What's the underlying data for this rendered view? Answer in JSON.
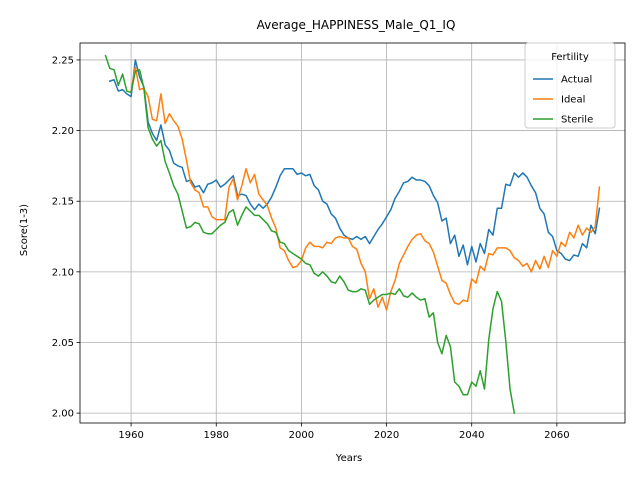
{
  "chart_data": {
    "type": "line",
    "title": "Average_HAPPINESS_Male_Q1_IQ",
    "xlabel": "Years",
    "ylabel": "Score(1-3)",
    "xlim": [
      1948,
      2076
    ],
    "ylim": [
      1.993,
      2.262
    ],
    "xticks": [
      1960,
      1980,
      2000,
      2020,
      2040,
      2060
    ],
    "xtick_labels": [
      "1960",
      "1980",
      "2000",
      "2020",
      "2040",
      "2060"
    ],
    "yticks": [
      2.0,
      2.05,
      2.1,
      2.15,
      2.2,
      2.25
    ],
    "ytick_labels": [
      "2.00",
      "2.05",
      "2.10",
      "2.15",
      "2.20",
      "2.25"
    ],
    "grid": true,
    "legend": {
      "title": "Fertility",
      "position": "top-right"
    },
    "series": [
      {
        "name": "Actual",
        "color": "#1f77b4",
        "x": [
          1955,
          1956,
          1957,
          1958,
          1959,
          1960,
          1961,
          1962,
          1963,
          1964,
          1965,
          1966,
          1967,
          1968,
          1969,
          1970,
          1971,
          1972,
          1973,
          1974,
          1975,
          1976,
          1977,
          1978,
          1979,
          1980,
          1981,
          1982,
          1983,
          1984,
          1985,
          1986,
          1987,
          1988,
          1989,
          1990,
          1991,
          1992,
          1993,
          1994,
          1995,
          1996,
          1997,
          1998,
          1999,
          2000,
          2001,
          2002,
          2003,
          2004,
          2005,
          2006,
          2007,
          2008,
          2009,
          2010,
          2011,
          2012,
          2013,
          2014,
          2015,
          2016,
          2017,
          2018,
          2019,
          2020,
          2021,
          2022,
          2023,
          2024,
          2025,
          2026,
          2027,
          2028,
          2029,
          2030,
          2031,
          2032,
          2033,
          2034,
          2035,
          2036,
          2037,
          2038,
          2039,
          2040,
          2041,
          2042,
          2043,
          2044,
          2045,
          2046,
          2047,
          2048,
          2049,
          2050,
          2051,
          2052,
          2053,
          2054,
          2055,
          2056,
          2057,
          2058,
          2059,
          2060,
          2061,
          2062,
          2063,
          2064,
          2065,
          2066,
          2067,
          2068,
          2069,
          2070
        ],
        "values": [
          2.235,
          2.236,
          2.228,
          2.229,
          2.226,
          2.224,
          2.25,
          2.238,
          2.231,
          2.206,
          2.198,
          2.193,
          2.204,
          2.19,
          2.186,
          2.177,
          2.175,
          2.174,
          2.164,
          2.165,
          2.16,
          2.161,
          2.156,
          2.162,
          2.163,
          2.165,
          2.16,
          2.162,
          2.165,
          2.168,
          2.154,
          2.155,
          2.154,
          2.148,
          2.144,
          2.148,
          2.145,
          2.148,
          2.153,
          2.16,
          2.168,
          2.173,
          2.173,
          2.173,
          2.169,
          2.17,
          2.168,
          2.169,
          2.161,
          2.158,
          2.15,
          2.148,
          2.141,
          2.138,
          2.131,
          2.126,
          2.124,
          2.123,
          2.125,
          2.123,
          2.125,
          2.12,
          2.125,
          2.13,
          2.134,
          2.139,
          2.144,
          2.152,
          2.157,
          2.163,
          2.164,
          2.167,
          2.165,
          2.165,
          2.164,
          2.161,
          2.154,
          2.149,
          2.136,
          2.138,
          2.12,
          2.126,
          2.111,
          2.119,
          2.105,
          2.118,
          2.107,
          2.12,
          2.113,
          2.13,
          2.126,
          2.145,
          2.145,
          2.162,
          2.161,
          2.17,
          2.167,
          2.17,
          2.167,
          2.161,
          2.156,
          2.145,
          2.141,
          2.128,
          2.125,
          2.115,
          2.113,
          2.109,
          2.108,
          2.112,
          2.111,
          2.12,
          2.117,
          2.133,
          2.127,
          2.145
        ]
      },
      {
        "name": "Ideal",
        "color": "#ff7f0e",
        "x": [
          1960,
          1961,
          1962,
          1963,
          1964,
          1965,
          1966,
          1967,
          1968,
          1969,
          1970,
          1971,
          1972,
          1973,
          1974,
          1975,
          1976,
          1977,
          1978,
          1979,
          1980,
          1981,
          1982,
          1983,
          1984,
          1985,
          1986,
          1987,
          1988,
          1989,
          1990,
          1991,
          1992,
          1993,
          1994,
          1995,
          1996,
          1997,
          1998,
          1999,
          2000,
          2001,
          2002,
          2003,
          2004,
          2005,
          2006,
          2007,
          2008,
          2009,
          2010,
          2011,
          2012,
          2013,
          2014,
          2015,
          2016,
          2017,
          2018,
          2019,
          2020,
          2021,
          2022,
          2023,
          2024,
          2025,
          2026,
          2027,
          2028,
          2029,
          2030,
          2031,
          2032,
          2033,
          2034,
          2035,
          2036,
          2037,
          2038,
          2039,
          2040,
          2041,
          2042,
          2043,
          2044,
          2045,
          2046,
          2047,
          2048,
          2049,
          2050,
          2051,
          2052,
          2053,
          2054,
          2055,
          2056,
          2057,
          2058,
          2059,
          2060,
          2061,
          2062,
          2063,
          2064,
          2065,
          2066,
          2067,
          2068,
          2069,
          2070
        ],
        "values": [
          2.228,
          2.245,
          2.229,
          2.23,
          2.224,
          2.208,
          2.207,
          2.226,
          2.205,
          2.212,
          2.207,
          2.203,
          2.194,
          2.179,
          2.163,
          2.158,
          2.156,
          2.146,
          2.146,
          2.139,
          2.137,
          2.137,
          2.137,
          2.16,
          2.166,
          2.151,
          2.161,
          2.173,
          2.163,
          2.169,
          2.155,
          2.151,
          2.147,
          2.138,
          2.131,
          2.117,
          2.115,
          2.108,
          2.103,
          2.104,
          2.108,
          2.117,
          2.121,
          2.118,
          2.118,
          2.117,
          2.121,
          2.12,
          2.124,
          2.125,
          2.124,
          2.124,
          2.118,
          2.116,
          2.106,
          2.1,
          2.081,
          2.088,
          2.075,
          2.082,
          2.073,
          2.086,
          2.094,
          2.106,
          2.112,
          2.118,
          2.123,
          2.126,
          2.127,
          2.122,
          2.12,
          2.114,
          2.104,
          2.094,
          2.092,
          2.084,
          2.078,
          2.077,
          2.08,
          2.079,
          2.095,
          2.092,
          2.104,
          2.101,
          2.113,
          2.112,
          2.117,
          2.117,
          2.117,
          2.115,
          2.11,
          2.108,
          2.104,
          2.106,
          2.1,
          2.108,
          2.102,
          2.111,
          2.103,
          2.115,
          2.111,
          2.121,
          2.118,
          2.128,
          2.124,
          2.133,
          2.126,
          2.131,
          2.128,
          2.132,
          2.16
        ]
      },
      {
        "name": "Sterile",
        "color": "#2ca02c",
        "x": [
          1954,
          1955,
          1956,
          1957,
          1958,
          1959,
          1960,
          1961,
          1962,
          1963,
          1964,
          1965,
          1966,
          1967,
          1968,
          1969,
          1970,
          1971,
          1972,
          1973,
          1974,
          1975,
          1976,
          1977,
          1978,
          1979,
          1980,
          1981,
          1982,
          1983,
          1984,
          1985,
          1986,
          1987,
          1988,
          1989,
          1990,
          1991,
          1992,
          1993,
          1994,
          1995,
          1996,
          1997,
          1998,
          1999,
          2000,
          2001,
          2002,
          2003,
          2004,
          2005,
          2006,
          2007,
          2008,
          2009,
          2010,
          2011,
          2012,
          2013,
          2014,
          2015,
          2016,
          2017,
          2018,
          2019,
          2020,
          2021,
          2022,
          2023,
          2024,
          2025,
          2026,
          2027,
          2028,
          2029,
          2030,
          2031,
          2032,
          2033,
          2034,
          2035,
          2036,
          2037,
          2038,
          2039,
          2040,
          2041,
          2042,
          2043,
          2044,
          2045,
          2046,
          2047,
          2048,
          2049,
          2050
        ],
        "values": [
          2.253,
          2.244,
          2.243,
          2.232,
          2.24,
          2.228,
          2.227,
          2.242,
          2.243,
          2.23,
          2.202,
          2.194,
          2.189,
          2.193,
          2.178,
          2.17,
          2.161,
          2.155,
          2.143,
          2.131,
          2.132,
          2.135,
          2.134,
          2.128,
          2.127,
          2.127,
          2.13,
          2.133,
          2.135,
          2.142,
          2.144,
          2.133,
          2.14,
          2.146,
          2.143,
          2.14,
          2.14,
          2.137,
          2.134,
          2.129,
          2.128,
          2.121,
          2.12,
          2.115,
          2.113,
          2.111,
          2.109,
          2.106,
          2.105,
          2.099,
          2.097,
          2.1,
          2.097,
          2.093,
          2.092,
          2.097,
          2.093,
          2.087,
          2.086,
          2.086,
          2.088,
          2.087,
          2.077,
          2.08,
          2.082,
          2.084,
          2.084,
          2.085,
          2.084,
          2.088,
          2.083,
          2.082,
          2.085,
          2.082,
          2.08,
          2.081,
          2.068,
          2.071,
          2.05,
          2.042,
          2.055,
          2.047,
          2.022,
          2.019,
          2.013,
          2.013,
          2.022,
          2.019,
          2.03,
          2.017,
          2.052,
          2.074,
          2.086,
          2.079,
          2.051,
          2.017,
          2.0
        ]
      }
    ]
  }
}
